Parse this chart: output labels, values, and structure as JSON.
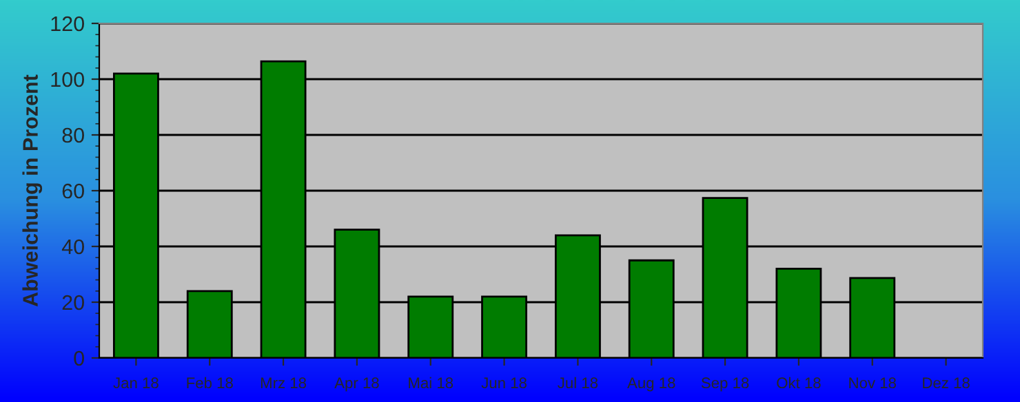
{
  "chart_data": {
    "type": "bar",
    "ylabel": "Abweichung in Prozent",
    "categories": [
      "Jan 18",
      "Feb 18",
      "Mrz 18",
      "Apr 18",
      "Mai 18",
      "Jun 18",
      "Jul 18",
      "Aug 18",
      "Sep 18",
      "Okt 18",
      "Nov 18",
      "Dez 18"
    ],
    "values": [
      102,
      24,
      106.4,
      46,
      22,
      22,
      44,
      35,
      57.4,
      32,
      28.7,
      null
    ],
    "color": "#007c00",
    "ylim": [
      0,
      120
    ],
    "yticks": [
      0,
      20,
      40,
      60,
      80,
      100,
      120
    ],
    "grid": "y"
  }
}
